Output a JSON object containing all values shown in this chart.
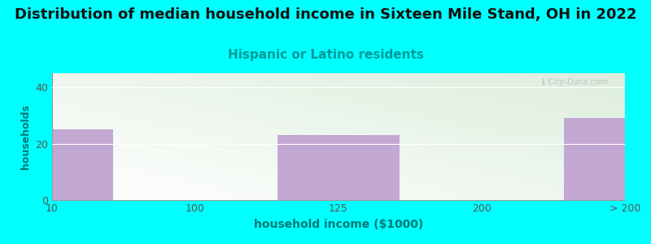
{
  "title": "Distribution of median household income in Sixteen Mile Stand, OH in 2022",
  "subtitle": "Hispanic or Latino residents",
  "xlabel": "household income ($1000)",
  "ylabel": "households",
  "background_color": "#00FFFF",
  "bar_color": "#C4A8D4",
  "categories": [
    "10",
    "100",
    "125",
    "200",
    "> 200"
  ],
  "values": [
    25,
    0,
    23,
    0,
    29
  ],
  "ylim": [
    0,
    45
  ],
  "yticks": [
    0,
    20,
    40
  ],
  "watermark": "ℹ City-Data.com",
  "title_fontsize": 13,
  "subtitle_fontsize": 11,
  "xlabel_fontsize": 10,
  "ylabel_fontsize": 9,
  "title_color": "#111111",
  "subtitle_color": "#009999",
  "xlabel_color": "#007777",
  "ylabel_color": "#007777",
  "tick_color": "#555555"
}
